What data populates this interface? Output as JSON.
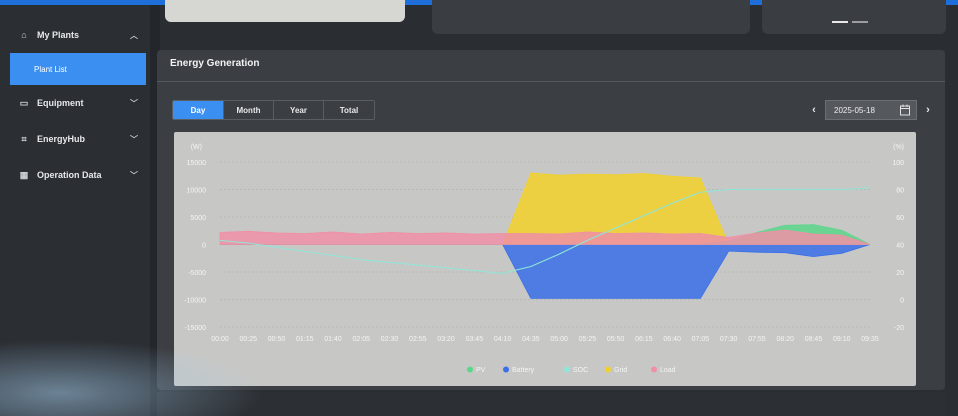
{
  "sidebar": {
    "items": [
      {
        "label": "My Plants",
        "icon": "home-icon"
      },
      {
        "label": "Plant List",
        "icon": ""
      },
      {
        "label": "Equipment",
        "icon": "device-icon"
      },
      {
        "label": "EnergyHub",
        "icon": "hub-icon"
      },
      {
        "label": "Operation Data",
        "icon": "grid-icon"
      }
    ]
  },
  "panel": {
    "title": "Energy Generation",
    "tabs": [
      "Day",
      "Month",
      "Year",
      "Total"
    ],
    "active_tab": "Day",
    "date": "2025-05-18"
  },
  "chart_data": {
    "type": "area",
    "left_axis_unit": "(W)",
    "right_axis_unit": "(%)",
    "left_ticks": [
      15000,
      10000,
      5000,
      0,
      -5000,
      -10000,
      -15000
    ],
    "right_ticks": [
      100,
      80,
      60,
      40,
      20,
      0,
      -20
    ],
    "ylim_left": [
      -15000,
      15000
    ],
    "ylim_right": [
      -20,
      100
    ],
    "x": [
      "00:00",
      "00:25",
      "00:50",
      "01:15",
      "01:40",
      "02:05",
      "02:30",
      "02:55",
      "03:20",
      "03:45",
      "04:10",
      "04:35",
      "05:00",
      "05:25",
      "05:50",
      "06:15",
      "06:40",
      "07:05",
      "07:30",
      "07:55",
      "08:20",
      "08:45",
      "09:10",
      "09:35"
    ],
    "series": [
      {
        "name": "PV",
        "color": "#5cd68a",
        "values": [
          0,
          0,
          0,
          0,
          0,
          0,
          0,
          0,
          0,
          0,
          0,
          0,
          0,
          0,
          0,
          0,
          0,
          0,
          600,
          2200,
          3500,
          3600,
          2600,
          0
        ]
      },
      {
        "name": "Battery",
        "color": "#3a6fe8",
        "values": [
          0,
          0,
          0,
          0,
          0,
          0,
          0,
          0,
          0,
          0,
          0,
          -9800,
          -9800,
          -9800,
          -9800,
          -9800,
          -9800,
          -9800,
          -1200,
          -1400,
          -1500,
          -2200,
          -1600,
          0
        ]
      },
      {
        "name": "SOC",
        "color": "#8fe6d8",
        "values": [
          43,
          41,
          38,
          35,
          32,
          29,
          27,
          25,
          23,
          21,
          19,
          24,
          33,
          43,
          52,
          61,
          70,
          78,
          80,
          80,
          80,
          80,
          80,
          81
        ]
      },
      {
        "name": "Grid",
        "color": "#f2d12a",
        "values": [
          0,
          0,
          0,
          0,
          0,
          0,
          0,
          0,
          0,
          0,
          0,
          13000,
          12600,
          12800,
          12700,
          12900,
          12400,
          12100,
          0,
          0,
          0,
          0,
          0,
          0
        ]
      },
      {
        "name": "Load",
        "color": "#f08fa6",
        "values": [
          2200,
          2400,
          2100,
          2000,
          2300,
          1900,
          2200,
          2000,
          2100,
          1900,
          2000,
          2000,
          1900,
          2300,
          2000,
          2100,
          1900,
          2000,
          1300,
          2100,
          2600,
          1900,
          1700,
          0
        ]
      }
    ],
    "legend_position": "bottom",
    "grid": true
  }
}
